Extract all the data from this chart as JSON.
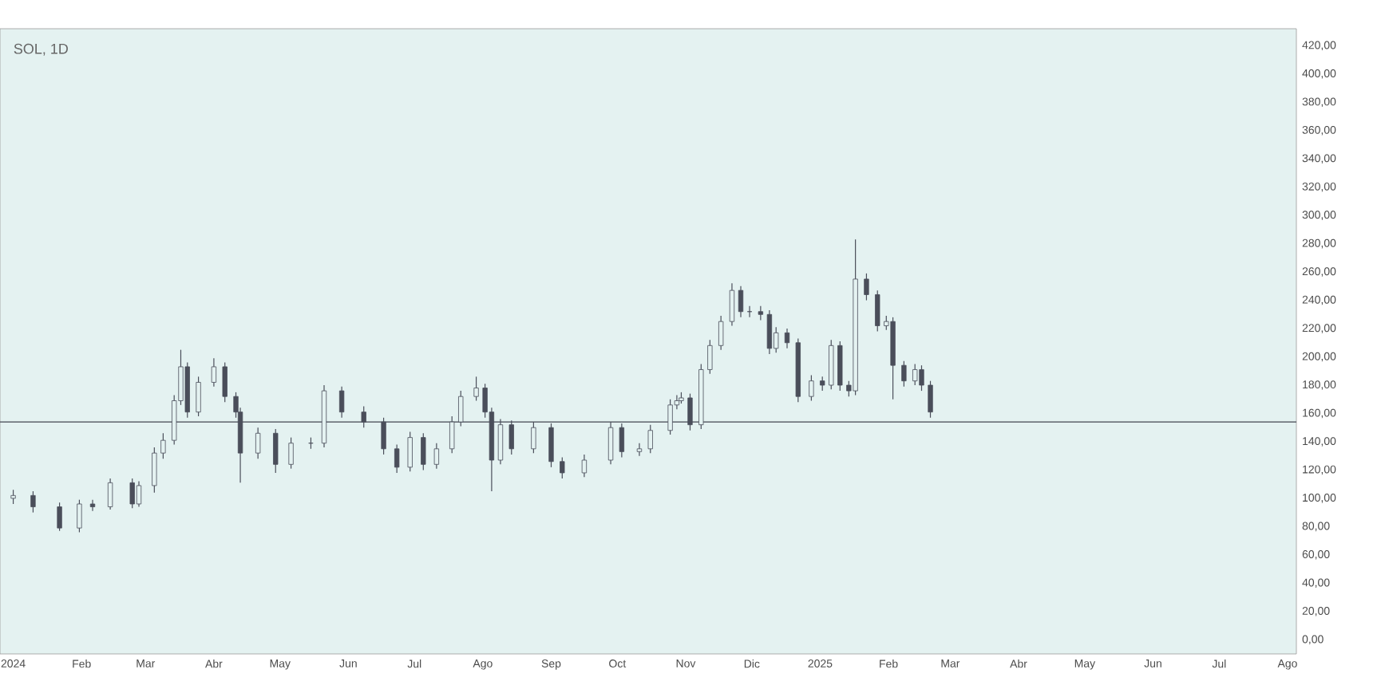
{
  "chart_data": {
    "type": "candlestick",
    "title": "SOL, 1D",
    "color": "#4a4e5a",
    "xlim": [
      "2023-12-26",
      "2025-08-05"
    ],
    "xticks": [
      {
        "value": "2024-01-01",
        "label": "2024"
      },
      {
        "value": "2024-02-01",
        "label": "Feb"
      },
      {
        "value": "2024-03-01",
        "label": "Mar"
      },
      {
        "value": "2024-04-01",
        "label": "Abr"
      },
      {
        "value": "2024-05-01",
        "label": "May"
      },
      {
        "value": "2024-06-01",
        "label": "Jun"
      },
      {
        "value": "2024-07-01",
        "label": "Jul"
      },
      {
        "value": "2024-08-01",
        "label": "Ago"
      },
      {
        "value": "2024-09-01",
        "label": "Sep"
      },
      {
        "value": "2024-10-01",
        "label": "Oct"
      },
      {
        "value": "2024-11-01",
        "label": "Nov"
      },
      {
        "value": "2024-12-01",
        "label": "Dic"
      },
      {
        "value": "2025-01-01",
        "label": "2025"
      },
      {
        "value": "2025-02-01",
        "label": "Feb"
      },
      {
        "value": "2025-03-01",
        "label": "Mar"
      },
      {
        "value": "2025-04-01",
        "label": "Abr"
      },
      {
        "value": "2025-05-01",
        "label": "May"
      },
      {
        "value": "2025-06-01",
        "label": "Jun"
      },
      {
        "value": "2025-07-01",
        "label": "Jul"
      },
      {
        "value": "2025-08-01",
        "label": "Ago"
      }
    ],
    "ylim": [
      -10,
      432
    ],
    "yticks": [
      {
        "value": 0,
        "label": "0,00"
      },
      {
        "value": 20,
        "label": "20,00"
      },
      {
        "value": 40,
        "label": "40,00"
      },
      {
        "value": 60,
        "label": "60,00"
      },
      {
        "value": 80,
        "label": "80,00"
      },
      {
        "value": 100,
        "label": "100,00"
      },
      {
        "value": 120,
        "label": "120,00"
      },
      {
        "value": 140,
        "label": "140,00"
      },
      {
        "value": 160,
        "label": "160,00"
      },
      {
        "value": 180,
        "label": "180,00"
      },
      {
        "value": 200,
        "label": "200,00"
      },
      {
        "value": 220,
        "label": "220,00"
      },
      {
        "value": 240,
        "label": "240,00"
      },
      {
        "value": 260,
        "label": "260,00"
      },
      {
        "value": 280,
        "label": "280,00"
      },
      {
        "value": 300,
        "label": "300,00"
      },
      {
        "value": 320,
        "label": "320,00"
      },
      {
        "value": 340,
        "label": "340,00"
      },
      {
        "value": 360,
        "label": "360,00"
      },
      {
        "value": 380,
        "label": "380,00"
      },
      {
        "value": 400,
        "label": "400,00"
      },
      {
        "value": 420,
        "label": "420,00"
      }
    ],
    "tick_labels": true,
    "ref_lines": [
      {
        "axis": "y",
        "value": 154,
        "color": "#434651",
        "line_style": "solid"
      }
    ],
    "x": [
      "2024-01-01",
      "2024-01-10",
      "2024-01-22",
      "2024-01-31",
      "2024-02-06",
      "2024-02-14",
      "2024-02-24",
      "2024-02-27",
      "2024-03-05",
      "2024-03-09",
      "2024-03-14",
      "2024-03-17",
      "2024-03-20",
      "2024-03-25",
      "2024-04-01",
      "2024-04-06",
      "2024-04-11",
      "2024-04-13",
      "2024-04-21",
      "2024-04-29",
      "2024-05-06",
      "2024-05-15",
      "2024-05-21",
      "2024-05-29",
      "2024-06-08",
      "2024-06-17",
      "2024-06-23",
      "2024-06-29",
      "2024-07-05",
      "2024-07-11",
      "2024-07-18",
      "2024-07-22",
      "2024-07-29",
      "2024-08-02",
      "2024-08-05",
      "2024-08-09",
      "2024-08-14",
      "2024-08-24",
      "2024-09-01",
      "2024-09-06",
      "2024-09-16",
      "2024-09-28",
      "2024-10-03",
      "2024-10-11",
      "2024-10-16",
      "2024-10-25",
      "2024-10-28",
      "2024-10-30",
      "2024-11-03",
      "2024-11-08",
      "2024-11-12",
      "2024-11-17",
      "2024-11-22",
      "2024-11-26",
      "2024-11-30",
      "2024-12-05",
      "2024-12-09",
      "2024-12-12",
      "2024-12-17",
      "2024-12-22",
      "2024-12-28",
      "2025-01-02",
      "2025-01-06",
      "2025-01-10",
      "2025-01-14",
      "2025-01-17",
      "2025-01-22",
      "2025-01-27",
      "2025-01-31",
      "2025-02-03",
      "2025-02-08",
      "2025-02-13",
      "2025-02-16",
      "2025-02-20"
    ],
    "ohlc": [
      [
        100,
        106,
        96,
        102
      ],
      [
        102,
        105,
        90,
        94
      ],
      [
        94,
        97,
        77,
        79
      ],
      [
        79,
        99,
        76,
        96
      ],
      [
        96,
        99,
        91,
        94
      ],
      [
        94,
        114,
        92,
        111
      ],
      [
        111,
        114,
        93,
        96
      ],
      [
        96,
        112,
        94,
        109
      ],
      [
        109,
        136,
        104,
        132
      ],
      [
        132,
        146,
        128,
        141
      ],
      [
        141,
        173,
        138,
        169
      ],
      [
        169,
        205,
        166,
        193
      ],
      [
        193,
        196,
        157,
        161
      ],
      [
        161,
        186,
        158,
        182
      ],
      [
        182,
        199,
        179,
        193
      ],
      [
        193,
        196,
        168,
        172
      ],
      [
        172,
        175,
        157,
        161
      ],
      [
        161,
        164,
        111,
        132
      ],
      [
        132,
        150,
        128,
        146
      ],
      [
        146,
        149,
        118,
        124
      ],
      [
        124,
        143,
        121,
        139
      ],
      [
        139,
        143,
        135,
        139
      ],
      [
        139,
        180,
        136,
        176
      ],
      [
        176,
        179,
        157,
        161
      ],
      [
        161,
        165,
        150,
        154
      ],
      [
        154,
        157,
        131,
        135
      ],
      [
        135,
        138,
        118,
        122
      ],
      [
        122,
        147,
        119,
        143
      ],
      [
        143,
        146,
        120,
        124
      ],
      [
        124,
        139,
        121,
        135
      ],
      [
        135,
        158,
        132,
        154
      ],
      [
        154,
        176,
        151,
        172
      ],
      [
        172,
        186,
        169,
        178
      ],
      [
        178,
        181,
        157,
        161
      ],
      [
        161,
        164,
        105,
        127
      ],
      [
        127,
        156,
        124,
        152
      ],
      [
        152,
        155,
        131,
        135
      ],
      [
        135,
        154,
        132,
        150
      ],
      [
        150,
        153,
        122,
        126
      ],
      [
        126,
        129,
        114,
        118
      ],
      [
        118,
        131,
        115,
        127
      ],
      [
        127,
        154,
        124,
        150
      ],
      [
        150,
        153,
        129,
        133
      ],
      [
        133,
        139,
        130,
        135
      ],
      [
        135,
        152,
        132,
        148
      ],
      [
        148,
        170,
        145,
        166
      ],
      [
        166,
        173,
        163,
        169
      ],
      [
        169,
        175,
        167,
        171
      ],
      [
        171,
        174,
        148,
        152
      ],
      [
        152,
        195,
        149,
        191
      ],
      [
        191,
        212,
        188,
        208
      ],
      [
        208,
        229,
        205,
        225
      ],
      [
        225,
        252,
        222,
        247
      ],
      [
        247,
        250,
        228,
        232
      ],
      [
        232,
        236,
        228,
        232
      ],
      [
        232,
        236,
        226,
        230
      ],
      [
        230,
        233,
        202,
        206
      ],
      [
        206,
        221,
        203,
        217
      ],
      [
        217,
        220,
        206,
        210
      ],
      [
        210,
        213,
        168,
        172
      ],
      [
        172,
        187,
        169,
        183
      ],
      [
        183,
        186,
        176,
        180
      ],
      [
        180,
        212,
        177,
        208
      ],
      [
        208,
        211,
        176,
        180
      ],
      [
        180,
        183,
        172,
        176
      ],
      [
        176,
        283,
        173,
        255
      ],
      [
        255,
        259,
        240,
        244
      ],
      [
        244,
        247,
        218,
        222
      ],
      [
        222,
        229,
        219,
        225
      ],
      [
        225,
        228,
        170,
        194
      ],
      [
        194,
        197,
        179,
        183
      ],
      [
        183,
        195,
        180,
        191
      ],
      [
        191,
        194,
        176,
        180
      ],
      [
        180,
        183,
        157,
        161
      ]
    ]
  }
}
